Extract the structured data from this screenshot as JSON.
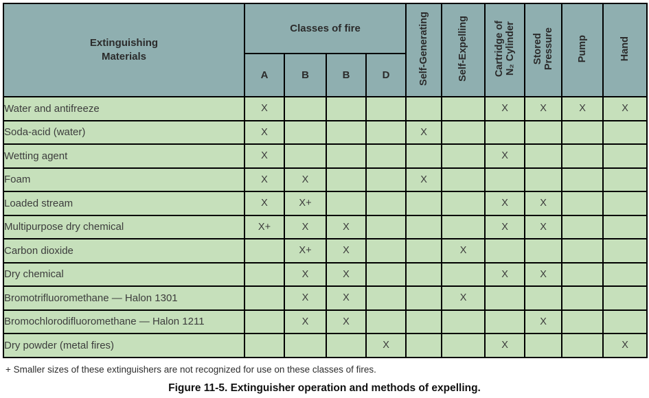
{
  "colors": {
    "header_bg": "#8FAFB0",
    "row_bg": "#C6E0BB",
    "border": "#000000"
  },
  "table": {
    "col1_header": "Extinguishing\nMaterials",
    "classes_header": "Classes of fire",
    "class_labels": [
      "A",
      "B",
      "B",
      "D"
    ],
    "method_headers": [
      "Self-Generating",
      "Self-Expelling",
      "Cartridge of\nN₂ Cylinder",
      "Stored\nPressure",
      "Pump",
      "Hand"
    ],
    "rows": [
      {
        "label": "Water and antifreeze",
        "cells": [
          "X",
          "",
          "",
          "",
          "",
          "",
          "X",
          "X",
          "X",
          "X"
        ]
      },
      {
        "label": "Soda-acid (water)",
        "cells": [
          "X",
          "",
          "",
          "",
          "X",
          "",
          "",
          "",
          "",
          ""
        ]
      },
      {
        "label": "Wetting agent",
        "cells": [
          "X",
          "",
          "",
          "",
          "",
          "",
          "X",
          "",
          "",
          ""
        ]
      },
      {
        "label": "Foam",
        "cells": [
          "X",
          "X",
          "",
          "",
          "X",
          "",
          "",
          "",
          "",
          ""
        ]
      },
      {
        "label": "Loaded stream",
        "cells": [
          "X",
          "X+",
          "",
          "",
          "",
          "",
          "X",
          "X",
          "",
          ""
        ]
      },
      {
        "label": "Multipurpose dry chemical",
        "cells": [
          "X+",
          "X",
          "X",
          "",
          "",
          "",
          "X",
          "X",
          "",
          ""
        ]
      },
      {
        "label": "Carbon dioxide",
        "cells": [
          "",
          "X+",
          "X",
          "",
          "",
          "X",
          "",
          "",
          "",
          ""
        ]
      },
      {
        "label": "Dry chemical",
        "cells": [
          "",
          "X",
          "X",
          "",
          "",
          "",
          "X",
          "X",
          "",
          ""
        ]
      },
      {
        "label": "Bromotrifluoromethane — Halon 1301",
        "cells": [
          "",
          "X",
          "X",
          "",
          "",
          "X",
          "",
          "",
          "",
          ""
        ]
      },
      {
        "label": "Bromochlorodifluoromethane — Halon 1211",
        "cells": [
          "",
          "X",
          "X",
          "",
          "",
          "",
          "",
          "X",
          "",
          ""
        ]
      },
      {
        "label": "Dry powder (metal fires)",
        "cells": [
          "",
          "",
          "",
          "X",
          "",
          "",
          "X",
          "",
          "",
          "X"
        ]
      }
    ]
  },
  "footnote": "+ Smaller sizes of these extinguishers are not recognized for use on these classes of fires.",
  "caption": "Figure 11-5. Extinguisher operation and methods of expelling."
}
